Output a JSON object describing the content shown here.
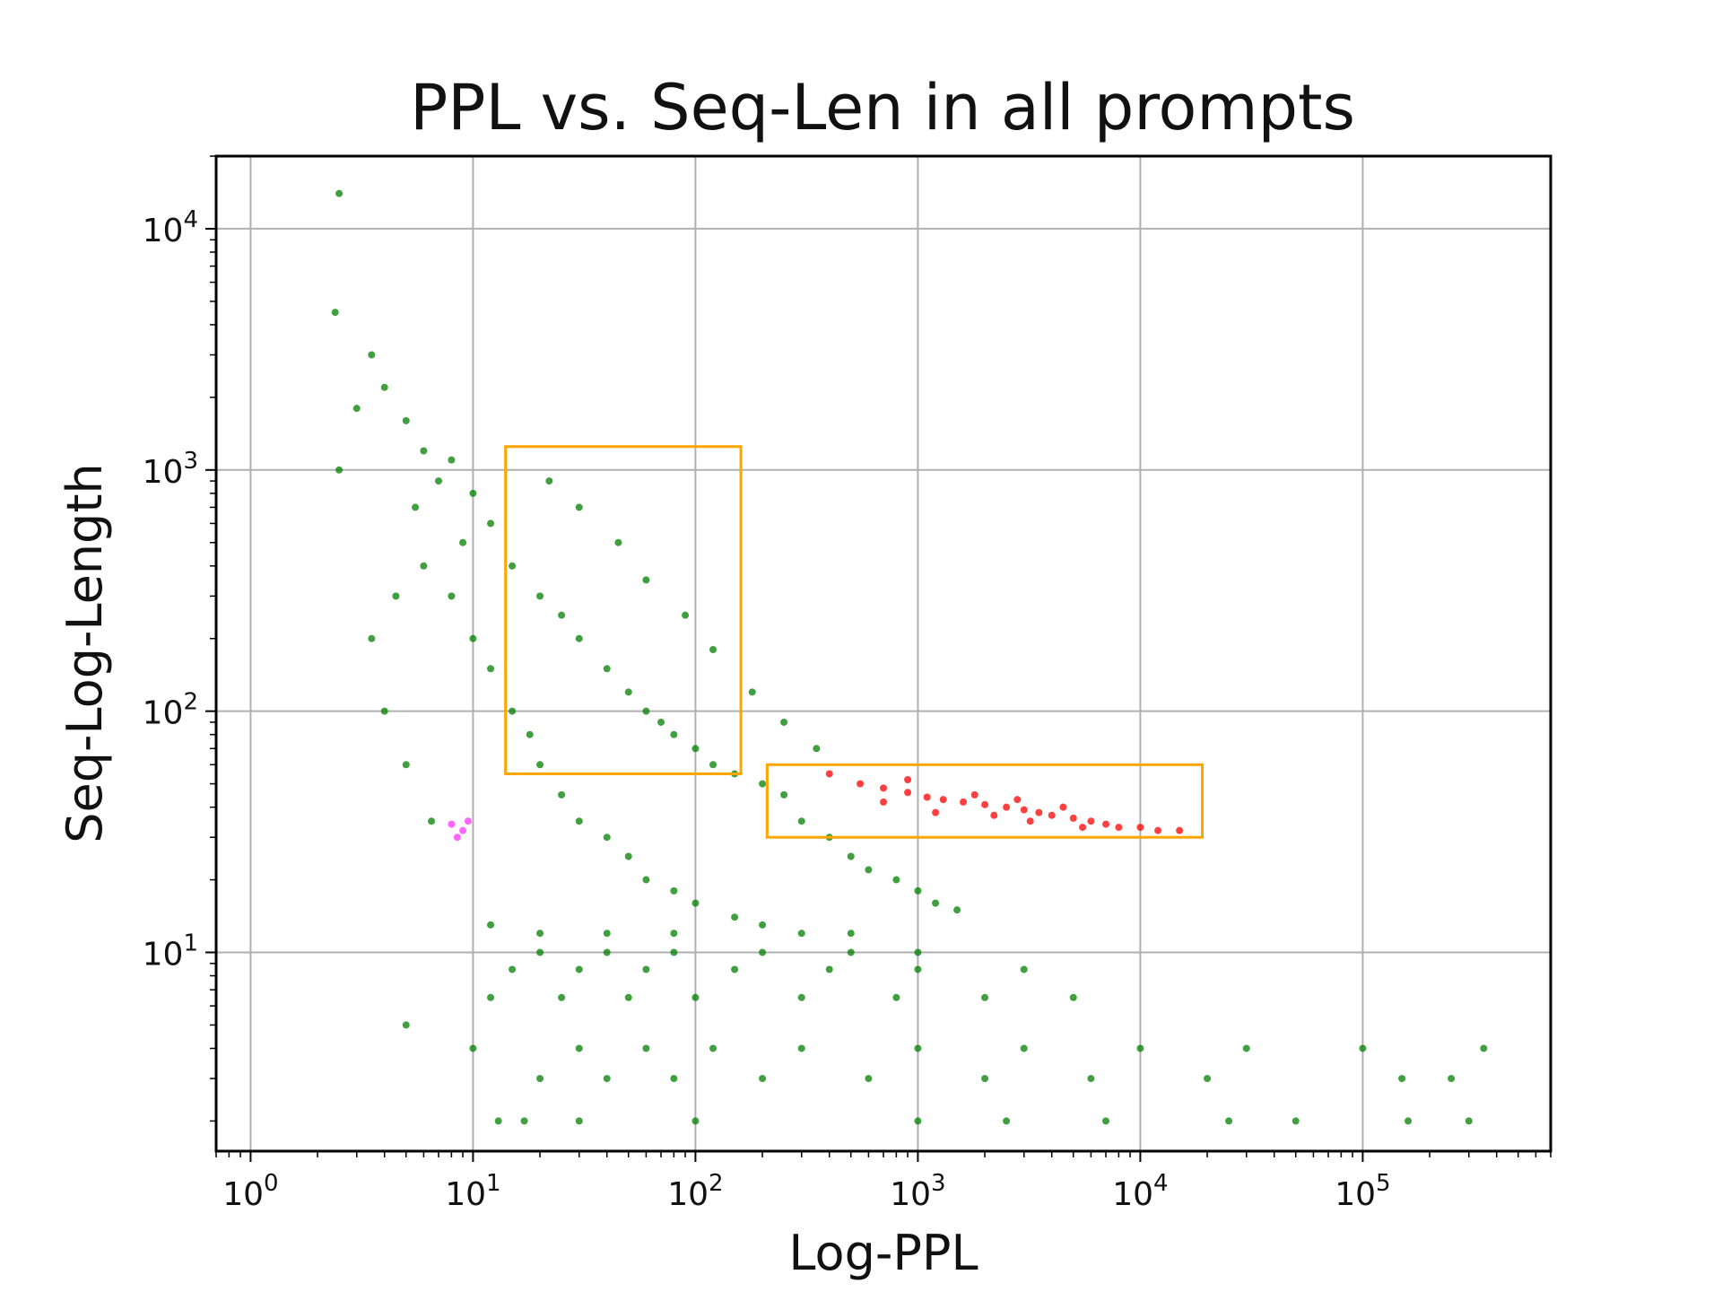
{
  "chart_data": {
    "type": "scatter",
    "title": "PPL vs. Seq-Len in all prompts",
    "xlabel": "Log-PPL",
    "ylabel": "Seq-Log-Length",
    "xscale": "log",
    "yscale": "log",
    "xlim": [
      0.7,
      700000
    ],
    "ylim": [
      1.5,
      20000
    ],
    "grid": true,
    "x_ticks": [
      {
        "value": 1,
        "label": "10",
        "exp": "0"
      },
      {
        "value": 10,
        "label": "10",
        "exp": "1"
      },
      {
        "value": 100,
        "label": "10",
        "exp": "2"
      },
      {
        "value": 1000,
        "label": "10",
        "exp": "3"
      },
      {
        "value": 10000,
        "label": "10",
        "exp": "4"
      },
      {
        "value": 100000,
        "label": "10",
        "exp": "5"
      }
    ],
    "y_ticks": [
      {
        "value": 10,
        "label": "10",
        "exp": "1"
      },
      {
        "value": 100,
        "label": "10",
        "exp": "2"
      },
      {
        "value": 1000,
        "label": "10",
        "exp": "3"
      },
      {
        "value": 10000,
        "label": "10",
        "exp": "4"
      }
    ],
    "series": [
      {
        "color": "#008000",
        "points": [
          [
            2.5,
            14000
          ],
          [
            2.4,
            4500
          ],
          [
            3.5,
            3000
          ],
          [
            4.0,
            2200
          ],
          [
            5.0,
            1600
          ],
          [
            6.0,
            1200
          ],
          [
            3.0,
            1800
          ],
          [
            8.0,
            1100
          ],
          [
            10,
            800
          ],
          [
            7.0,
            900
          ],
          [
            12,
            600
          ],
          [
            5.5,
            700
          ],
          [
            9.0,
            500
          ],
          [
            15,
            400
          ],
          [
            20,
            300
          ],
          [
            25,
            250
          ],
          [
            30,
            200
          ],
          [
            40,
            150
          ],
          [
            50,
            120
          ],
          [
            60,
            100
          ],
          [
            70,
            90
          ],
          [
            80,
            80
          ],
          [
            100,
            70
          ],
          [
            120,
            60
          ],
          [
            150,
            55
          ],
          [
            200,
            50
          ],
          [
            250,
            45
          ],
          [
            300,
            35
          ],
          [
            400,
            30
          ],
          [
            500,
            25
          ],
          [
            600,
            22
          ],
          [
            800,
            20
          ],
          [
            1000,
            18
          ],
          [
            1200,
            16
          ],
          [
            1500,
            15
          ],
          [
            6.0,
            400
          ],
          [
            8.0,
            300
          ],
          [
            10,
            200
          ],
          [
            12,
            150
          ],
          [
            15,
            100
          ],
          [
            18,
            80
          ],
          [
            20,
            60
          ],
          [
            25,
            45
          ],
          [
            30,
            35
          ],
          [
            40,
            30
          ],
          [
            50,
            25
          ],
          [
            60,
            20
          ],
          [
            80,
            18
          ],
          [
            100,
            16
          ],
          [
            150,
            14
          ],
          [
            200,
            13
          ],
          [
            300,
            12
          ],
          [
            500,
            12
          ],
          [
            22,
            900
          ],
          [
            30,
            700
          ],
          [
            45,
            500
          ],
          [
            60,
            350
          ],
          [
            90,
            250
          ],
          [
            120,
            180
          ],
          [
            180,
            120
          ],
          [
            250,
            90
          ],
          [
            350,
            70
          ],
          [
            12,
            13
          ],
          [
            20,
            12
          ],
          [
            40,
            12
          ],
          [
            80,
            12
          ],
          [
            20,
            10
          ],
          [
            40,
            10
          ],
          [
            80,
            10
          ],
          [
            200,
            10
          ],
          [
            500,
            10
          ],
          [
            1000,
            10
          ],
          [
            15,
            8.5
          ],
          [
            30,
            8.5
          ],
          [
            60,
            8.5
          ],
          [
            150,
            8.5
          ],
          [
            400,
            8.5
          ],
          [
            1000,
            8.5
          ],
          [
            3000,
            8.5
          ],
          [
            5,
            5
          ],
          [
            12,
            6.5
          ],
          [
            25,
            6.5
          ],
          [
            50,
            6.5
          ],
          [
            100,
            6.5
          ],
          [
            300,
            6.5
          ],
          [
            800,
            6.5
          ],
          [
            2000,
            6.5
          ],
          [
            5000,
            6.5
          ],
          [
            10,
            4
          ],
          [
            30,
            4
          ],
          [
            60,
            4
          ],
          [
            120,
            4
          ],
          [
            300,
            4
          ],
          [
            1000,
            4
          ],
          [
            3000,
            4
          ],
          [
            10000,
            4
          ],
          [
            30000,
            4
          ],
          [
            100000,
            4
          ],
          [
            350000,
            4
          ],
          [
            20,
            3
          ],
          [
            40,
            3
          ],
          [
            80,
            3
          ],
          [
            200,
            3
          ],
          [
            600,
            3
          ],
          [
            2000,
            3
          ],
          [
            6000,
            3
          ],
          [
            20000,
            3
          ],
          [
            150000,
            3
          ],
          [
            250000,
            3
          ],
          [
            13,
            2
          ],
          [
            17,
            2
          ],
          [
            30,
            2
          ],
          [
            100,
            2
          ],
          [
            1000,
            2
          ],
          [
            2500,
            2
          ],
          [
            7000,
            2
          ],
          [
            25000,
            2
          ],
          [
            50000,
            2
          ],
          [
            160000,
            2
          ],
          [
            300000,
            2
          ],
          [
            6.5,
            35
          ],
          [
            5.0,
            60
          ],
          [
            4.0,
            100
          ],
          [
            4.5,
            300
          ],
          [
            3.5,
            200
          ],
          [
            2.5,
            1000
          ]
        ]
      },
      {
        "color": "#ff0000",
        "points": [
          [
            400,
            55
          ],
          [
            550,
            50
          ],
          [
            700,
            48
          ],
          [
            900,
            46
          ],
          [
            1100,
            44
          ],
          [
            1300,
            43
          ],
          [
            1600,
            42
          ],
          [
            2000,
            41
          ],
          [
            2500,
            40
          ],
          [
            3000,
            39
          ],
          [
            3500,
            38
          ],
          [
            4000,
            37
          ],
          [
            5000,
            36
          ],
          [
            6000,
            35
          ],
          [
            7000,
            34
          ],
          [
            8000,
            33
          ],
          [
            10000,
            33
          ],
          [
            12000,
            32
          ],
          [
            15000,
            32
          ],
          [
            1800,
            45
          ],
          [
            2200,
            37
          ],
          [
            2800,
            43
          ],
          [
            3200,
            35
          ],
          [
            4500,
            40
          ],
          [
            5500,
            33
          ],
          [
            900,
            52
          ],
          [
            1200,
            38
          ],
          [
            700,
            42
          ]
        ]
      },
      {
        "color": "#ff33ff",
        "points": [
          [
            8,
            34
          ],
          [
            9,
            32
          ],
          [
            9.5,
            35
          ],
          [
            8.5,
            30
          ]
        ]
      }
    ],
    "annotations": [
      {
        "type": "rectangle",
        "color": "#ffa500",
        "x": [
          14,
          160
        ],
        "y": [
          55,
          1250
        ]
      },
      {
        "type": "rectangle",
        "color": "#ffa500",
        "x": [
          210,
          19000
        ],
        "y": [
          30,
          60
        ]
      }
    ]
  }
}
